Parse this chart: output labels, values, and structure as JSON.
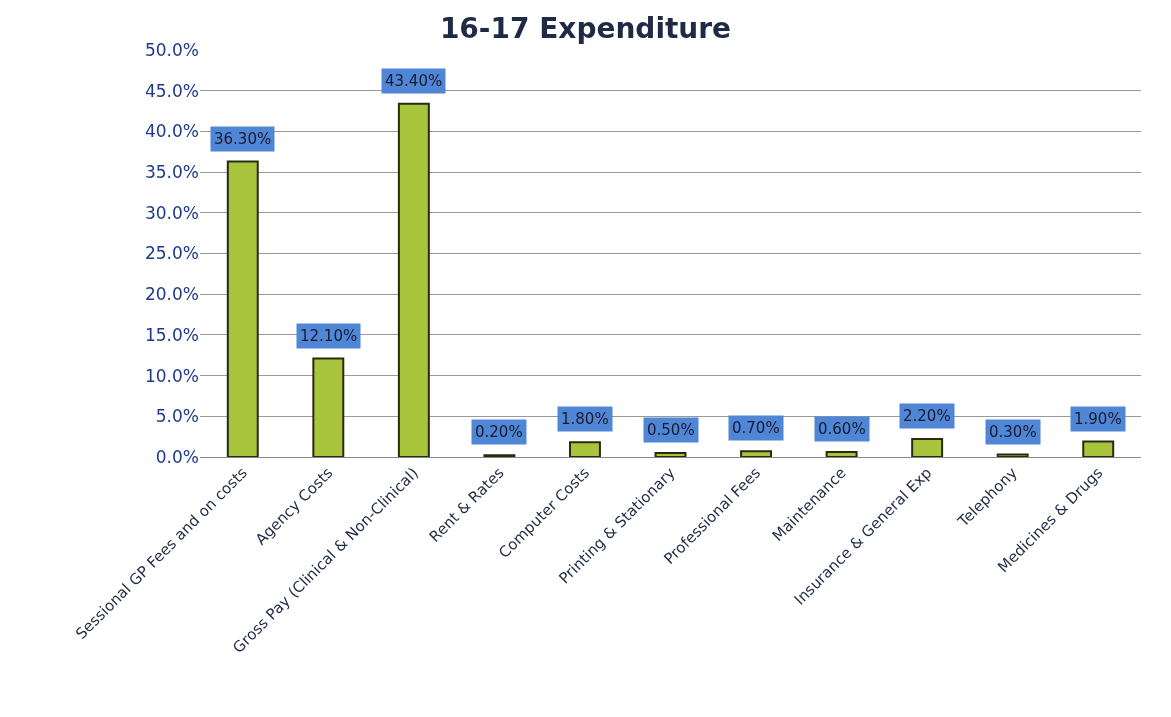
{
  "chart_data": {
    "type": "bar",
    "title": "16-17 Expenditure",
    "categories": [
      "Sessional GP Fees and on costs",
      "Agency Costs",
      "Gross Pay (Clinical & Non-Clinical)",
      "Rent & Rates",
      "Computer Costs",
      "Printing & Stationary",
      "Professional Fees",
      "Maintenance",
      "Insurance & General Exp",
      "Telephony",
      "Medicines & Drugs"
    ],
    "values": [
      36.3,
      12.1,
      43.4,
      0.2,
      1.8,
      0.5,
      0.7,
      0.6,
      2.2,
      0.3,
      1.9
    ],
    "value_labels": [
      "36.30%",
      "12.10%",
      "43.40%",
      "0.20%",
      "1.80%",
      "0.50%",
      "0.70%",
      "0.60%",
      "2.20%",
      "0.30%",
      "1.90%"
    ],
    "color": "#a8c43c",
    "ylim": [
      0,
      50
    ],
    "yticks": [
      {
        "value": 0,
        "label": "0.0%"
      },
      {
        "value": 5,
        "label": "5.0%"
      },
      {
        "value": 10,
        "label": "10.0%"
      },
      {
        "value": 15,
        "label": "15.0%"
      },
      {
        "value": 20,
        "label": "20.0%"
      },
      {
        "value": 25,
        "label": "25.0%"
      },
      {
        "value": 30,
        "label": "30.0%"
      },
      {
        "value": 35,
        "label": "35.0%"
      },
      {
        "value": 40,
        "label": "40.0%"
      },
      {
        "value": 45,
        "label": "45.0%"
      },
      {
        "value": 50,
        "label": "50.0%"
      }
    ],
    "grid": "y"
  }
}
